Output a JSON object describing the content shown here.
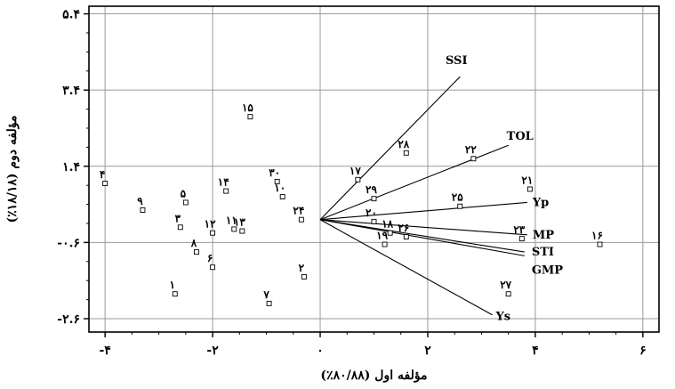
{
  "chart_data": {
    "type": "scatter",
    "subtype": "biplot",
    "title": "",
    "xlabel": "مؤلفه اول (۸۰/۸۸٪)",
    "ylabel": "مؤلفه دوم (۱۸/۱۸٪)",
    "xlim": [
      -4.3,
      6.3
    ],
    "ylim": [
      -2.95,
      5.6
    ],
    "grid": true,
    "x_ticks": [
      {
        "value": -4,
        "label": "-۴"
      },
      {
        "value": -2,
        "label": "-۲"
      },
      {
        "value": 0,
        "label": "۰"
      },
      {
        "value": 2,
        "label": "۲"
      },
      {
        "value": 4,
        "label": "۴"
      },
      {
        "value": 6,
        "label": "۶"
      }
    ],
    "y_ticks": [
      {
        "value": 5.4,
        "label": "۵.۴"
      },
      {
        "value": 3.4,
        "label": "۳.۴"
      },
      {
        "value": 1.4,
        "label": "۱.۴"
      },
      {
        "value": -0.6,
        "label": "-۰.۶"
      },
      {
        "value": -2.6,
        "label": "-۲.۶"
      }
    ],
    "points": [
      {
        "label": "۱",
        "x": -2.7,
        "y": -1.95
      },
      {
        "label": "۲",
        "x": -0.3,
        "y": -1.5
      },
      {
        "label": "۳",
        "x": -2.6,
        "y": -0.2
      },
      {
        "label": "۴",
        "x": -4.0,
        "y": 0.95
      },
      {
        "label": "۵",
        "x": -2.5,
        "y": 0.45
      },
      {
        "label": "۶",
        "x": -2.0,
        "y": -1.25
      },
      {
        "label": "۷",
        "x": -0.95,
        "y": -2.2
      },
      {
        "label": "۸",
        "x": -2.3,
        "y": -0.85
      },
      {
        "label": "۹",
        "x": -3.3,
        "y": 0.25
      },
      {
        "label": "۱۰",
        "x": -0.7,
        "y": 0.6
      },
      {
        "label": "۱۱",
        "x": -1.6,
        "y": -0.25
      },
      {
        "label": "۱۲",
        "x": -2.0,
        "y": -0.35
      },
      {
        "label": "۱۳",
        "x": -1.45,
        "y": -0.3
      },
      {
        "label": "۱۴",
        "x": -1.75,
        "y": 0.75
      },
      {
        "label": "۱۵",
        "x": -1.3,
        "y": 2.7
      },
      {
        "label": "۱۶",
        "x": 5.2,
        "y": -0.65
      },
      {
        "label": "۱۷",
        "x": 0.7,
        "y": 1.05
      },
      {
        "label": "۱۸",
        "x": 1.3,
        "y": -0.35
      },
      {
        "label": "۱۹",
        "x": 1.2,
        "y": -0.65
      },
      {
        "label": "۲۰",
        "x": 1.0,
        "y": -0.05
      },
      {
        "label": "۲۱",
        "x": 3.9,
        "y": 0.8
      },
      {
        "label": "۲۲",
        "x": 2.85,
        "y": 1.6
      },
      {
        "label": "۲۳",
        "x": 3.75,
        "y": -0.5
      },
      {
        "label": "۲۴",
        "x": -0.35,
        "y": 0.0
      },
      {
        "label": "۲۵",
        "x": 2.6,
        "y": 0.35
      },
      {
        "label": "۲۶",
        "x": 1.6,
        "y": -0.45
      },
      {
        "label": "۲۷",
        "x": 3.5,
        "y": -1.95
      },
      {
        "label": "۲۸",
        "x": 1.6,
        "y": 1.75
      },
      {
        "label": "۲۹",
        "x": 1.0,
        "y": 0.55
      },
      {
        "label": "۳۰",
        "x": -0.8,
        "y": 1.0
      }
    ],
    "vectors": [
      {
        "label": "SSI",
        "x": 2.6,
        "y": 3.75
      },
      {
        "label": "TOL",
        "x": 3.5,
        "y": 1.95
      },
      {
        "label": "Yp",
        "x": 3.85,
        "y": 0.45
      },
      {
        "label": "MP",
        "x": 3.85,
        "y": -0.4
      },
      {
        "label": "STI",
        "x": 3.8,
        "y": -0.85
      },
      {
        "label": "GMP",
        "x": 3.8,
        "y": -0.95
      },
      {
        "label": "Ys",
        "x": 3.2,
        "y": -2.5
      }
    ]
  }
}
